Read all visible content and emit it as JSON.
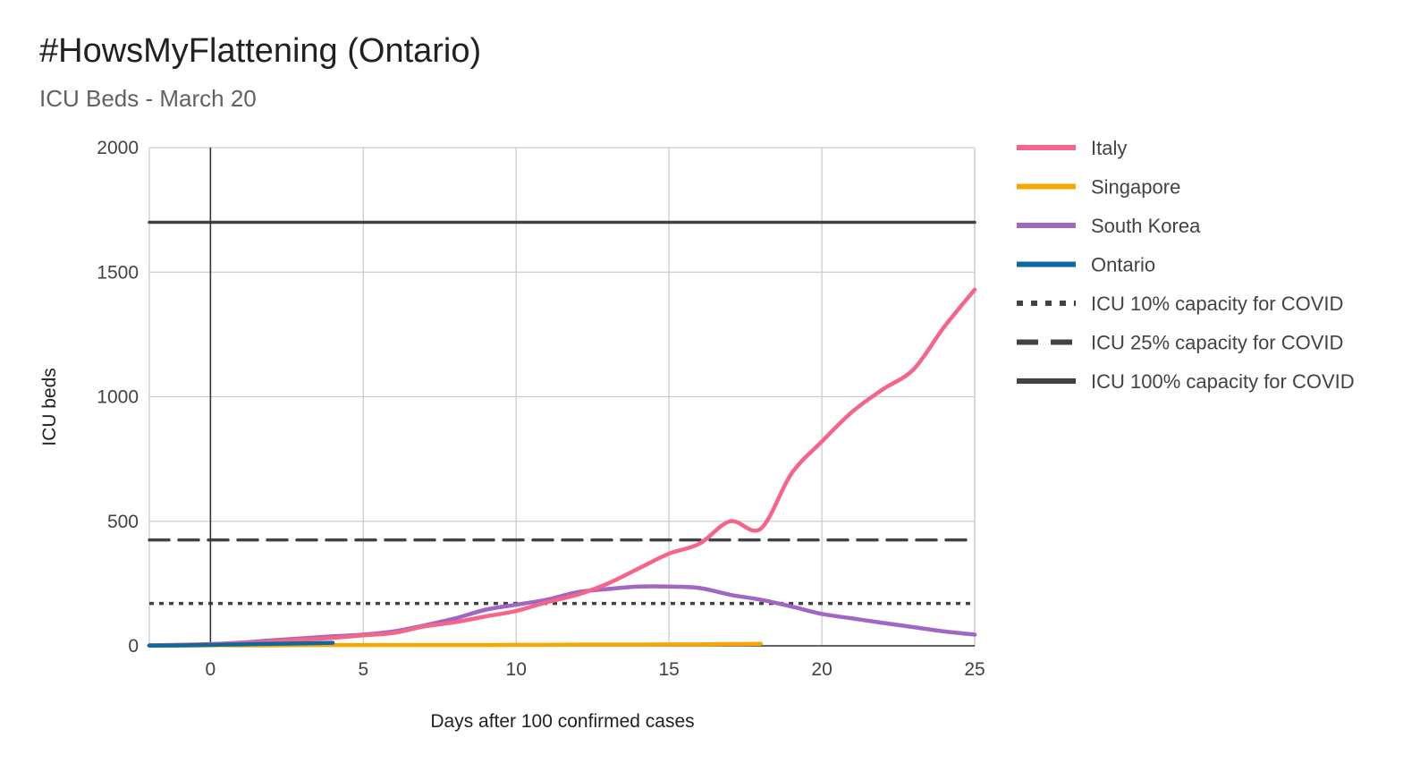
{
  "chart_data": {
    "type": "line",
    "title": "#HowsMyFlattening (Ontario)",
    "subtitle": "ICU Beds - March 20",
    "xlabel": "Days after 100 confirmed cases",
    "ylabel": "ICU beds",
    "xlim": [
      -2,
      25
    ],
    "ylim": [
      0,
      2000
    ],
    "xticks": [
      0,
      5,
      10,
      15,
      20,
      25
    ],
    "yticks": [
      0,
      500,
      1000,
      1500,
      2000
    ],
    "grid": true,
    "legend_position": "right",
    "series": [
      {
        "name": "Italy",
        "color": "#f46589",
        "style": "solid",
        "x": [
          -2,
          -1,
          0,
          1,
          2,
          3,
          4,
          5,
          6,
          7,
          8,
          9,
          10,
          11,
          12,
          13,
          14,
          15,
          16,
          17,
          18,
          19,
          20,
          21,
          22,
          23,
          24,
          25
        ],
        "values": [
          2,
          3,
          6,
          10,
          17,
          25,
          32,
          42,
          52,
          78,
          95,
          118,
          140,
          175,
          205,
          250,
          310,
          370,
          410,
          500,
          470,
          690,
          820,
          940,
          1030,
          1110,
          1280,
          1430
        ]
      },
      {
        "name": "Singapore",
        "color": "#f9a602",
        "style": "solid",
        "x": [
          -2,
          -1,
          0,
          1,
          2,
          3,
          4,
          5,
          6,
          7,
          8,
          9,
          10,
          11,
          12,
          13,
          14,
          15,
          16,
          17,
          18
        ],
        "values": [
          1,
          1,
          2,
          2,
          2,
          3,
          3,
          3,
          3,
          3,
          3,
          3,
          4,
          4,
          5,
          5,
          5,
          6,
          6,
          7,
          8
        ]
      },
      {
        "name": "South Korea",
        "color": "#a066c2",
        "style": "solid",
        "x": [
          -2,
          -1,
          0,
          1,
          2,
          3,
          4,
          5,
          6,
          7,
          8,
          9,
          10,
          11,
          12,
          13,
          14,
          15,
          16,
          17,
          18,
          19,
          20,
          21,
          22,
          23,
          24,
          25
        ],
        "values": [
          2,
          4,
          7,
          13,
          22,
          30,
          38,
          45,
          58,
          82,
          110,
          145,
          165,
          185,
          215,
          228,
          238,
          238,
          232,
          205,
          185,
          158,
          128,
          110,
          92,
          75,
          58,
          45
        ]
      },
      {
        "name": "Ontario",
        "color": "#0c6aa3",
        "style": "solid",
        "x": [
          -2,
          -1,
          0,
          1,
          2,
          3,
          4
        ],
        "values": [
          1,
          2,
          4,
          6,
          8,
          10,
          12
        ]
      },
      {
        "name": "ICU 10% capacity for COVID",
        "color": "#424242",
        "style": "dotted",
        "x": [
          -2,
          25
        ],
        "values": [
          170,
          170
        ]
      },
      {
        "name": "ICU 25% capacity for COVID",
        "color": "#424242",
        "style": "dashed",
        "x": [
          -2,
          25
        ],
        "values": [
          425,
          425
        ]
      },
      {
        "name": "ICU 100% capacity for COVID",
        "color": "#424242",
        "style": "solid",
        "x": [
          -2,
          25
        ],
        "values": [
          1700,
          1700
        ]
      }
    ]
  }
}
